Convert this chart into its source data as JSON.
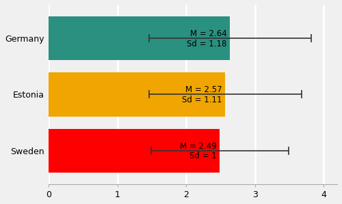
{
  "categories": [
    "Germany",
    "Estonia",
    "Sweden"
  ],
  "means": [
    2.64,
    2.57,
    2.49
  ],
  "sds": [
    1.18,
    1.11,
    1.0
  ],
  "bar_colors": [
    "#2a9080",
    "#f0a500",
    "#ff0000"
  ],
  "mean_labels": [
    "M = 2.64",
    "M = 2.57",
    "M = 2.49"
  ],
  "sd_labels": [
    "Sd = 1.18",
    "Sd = 1.11",
    "Sd = 1"
  ],
  "xlim": [
    0,
    4.2
  ],
  "xticks": [
    0,
    1,
    2,
    3,
    4
  ],
  "bar_height": 0.78,
  "background_color": "#f0f0f0",
  "grid_color": "#ffffff",
  "label_fontsize": 8.5,
  "tick_fontsize": 9,
  "ytick_fontsize": 9
}
